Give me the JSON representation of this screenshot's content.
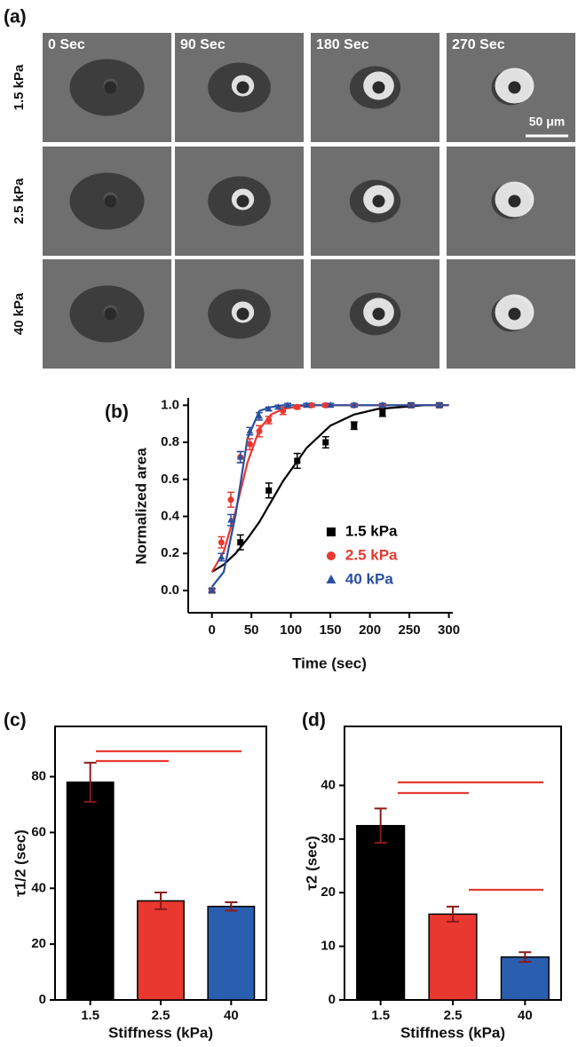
{
  "panel_a": {
    "label": "(a)",
    "time_labels": [
      "0 Sec",
      "90 Sec",
      "180 Sec",
      "270 Sec"
    ],
    "row_labels": [
      "1.5 kPa",
      "2.5 kPa",
      "40 kPa"
    ],
    "scale_bar": "50 μm"
  },
  "chart_data": [
    {
      "type": "scatter",
      "panel_label": "(b)",
      "x_label": "Time (sec)",
      "y_label": "Normalized area",
      "xlim": [
        -30,
        305
      ],
      "ylim": [
        -0.12,
        1.04
      ],
      "xticks": [
        0,
        50,
        100,
        150,
        200,
        250,
        300
      ],
      "yticks": [
        {
          "value": 0,
          "label": "0.0"
        },
        0.2,
        0.4,
        0.6,
        0.8,
        {
          "value": 1,
          "label": "1.0"
        }
      ],
      "legend": "center right",
      "series": [
        {
          "name": "1.5 kPa",
          "color": "#000000",
          "marker": "square",
          "x": [
            0,
            36,
            72,
            108,
            144,
            180,
            216,
            252,
            288
          ],
          "values": [
            0.0,
            0.26,
            0.54,
            0.7,
            0.8,
            0.89,
            0.96,
            1.0,
            1.0
          ],
          "errors": [
            0.01,
            0.04,
            0.04,
            0.04,
            0.03,
            0.02,
            0.02,
            0.01,
            0.01
          ]
        },
        {
          "name": "2.5 kPa",
          "color": "#e8382f",
          "marker": "circle",
          "x": [
            0,
            12,
            24,
            36,
            48,
            60,
            72,
            90,
            108,
            126,
            144,
            180,
            216,
            252,
            288
          ],
          "values": [
            0.0,
            0.26,
            0.49,
            0.72,
            0.79,
            0.86,
            0.92,
            0.97,
            0.99,
            1.0,
            1.0,
            1.0,
            1.0,
            1.0,
            1.0
          ],
          "errors": [
            0.01,
            0.03,
            0.04,
            0.03,
            0.03,
            0.03,
            0.02,
            0.02,
            0.01,
            0.01,
            0.01,
            0.01,
            0.01,
            0.01,
            0.01
          ]
        },
        {
          "name": "40 kPa",
          "color": "#2a4fa0",
          "marker": "triangle",
          "x": [
            0,
            12,
            24,
            36,
            48,
            60,
            72,
            84,
            96,
            120,
            150,
            180,
            216,
            252,
            288
          ],
          "values": [
            0.0,
            0.18,
            0.38,
            0.72,
            0.86,
            0.94,
            0.98,
            0.99,
            1.0,
            1.0,
            1.0,
            1.0,
            1.0,
            1.0,
            1.0
          ],
          "errors": [
            0.01,
            0.02,
            0.03,
            0.03,
            0.02,
            0.02,
            0.01,
            0.01,
            0.01,
            0.01,
            0.01,
            0.01,
            0.01,
            0.01,
            0.01
          ]
        },
        {
          "color": "#000000",
          "style": "line",
          "x": [
            0,
            15,
            30,
            45,
            60,
            75,
            90,
            105,
            120,
            150,
            180,
            210,
            240,
            270,
            300
          ],
          "values": [
            0.1,
            0.14,
            0.2,
            0.28,
            0.37,
            0.48,
            0.59,
            0.68,
            0.77,
            0.89,
            0.95,
            0.98,
            0.99,
            1.0,
            1.0
          ]
        },
        {
          "color": "#e8382f",
          "style": "line",
          "x": [
            0,
            15,
            30,
            45,
            60,
            75,
            90,
            105,
            120,
            150,
            180,
            210,
            240,
            270,
            300
          ],
          "values": [
            0.1,
            0.21,
            0.43,
            0.69,
            0.87,
            0.95,
            0.98,
            0.99,
            1.0,
            1.0,
            1.0,
            1.0,
            1.0,
            1.0,
            1.0
          ]
        },
        {
          "color": "#2a4fa0",
          "style": "line",
          "x": [
            0,
            15,
            30,
            45,
            60,
            75,
            90,
            105,
            120,
            150,
            180,
            210,
            240,
            270,
            300
          ],
          "values": [
            0.02,
            0.1,
            0.41,
            0.82,
            0.97,
            0.99,
            1.0,
            1.0,
            1.0,
            1.0,
            1.0,
            1.0,
            1.0,
            1.0,
            1.0
          ]
        }
      ]
    },
    {
      "type": "bar",
      "panel_label": "(c)",
      "x_label": "Stiffness (kPa)",
      "y_label": "τ1/2 (sec)",
      "categories": [
        "1.5",
        "2.5",
        "40"
      ],
      "values": [
        78,
        35.5,
        33.5
      ],
      "errors": [
        7,
        3,
        1.5
      ],
      "colors": [
        "#000000",
        "#e8382f",
        "#2a5fb0"
      ],
      "error_color": "#8b1a1a",
      "ylim": [
        0,
        98
      ],
      "yticks": [
        0,
        20,
        40,
        60,
        80
      ]
    },
    {
      "type": "bar",
      "panel_label": "(d)",
      "x_label": "Stiffness (kPa)",
      "y_label": "τ2 (sec)",
      "categories": [
        "1.5",
        "2.5",
        "40"
      ],
      "values": [
        32.5,
        16,
        8
      ],
      "errors": [
        3.2,
        1.4,
        0.9
      ],
      "colors": [
        "#000000",
        "#e8382f",
        "#2a5fb0"
      ],
      "error_color": "#8b1a1a",
      "ylim": [
        0,
        51
      ],
      "yticks": [
        0,
        10,
        20,
        30,
        40
      ]
    }
  ]
}
